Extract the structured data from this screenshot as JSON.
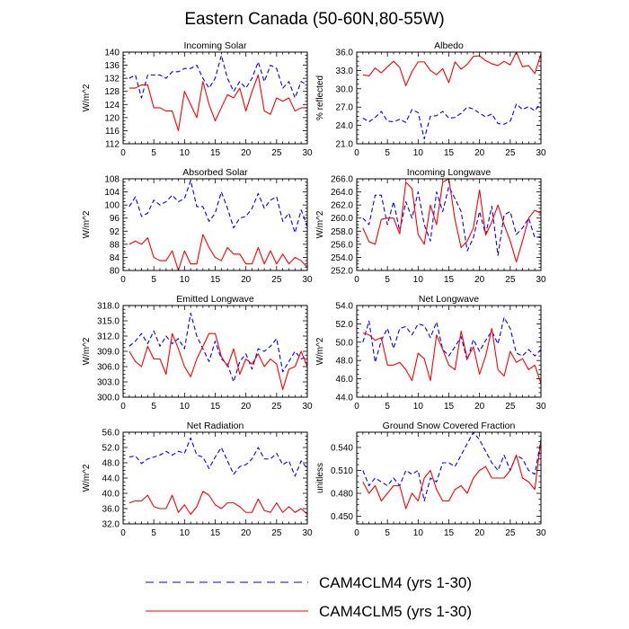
{
  "figure": {
    "title": "Eastern Canada (50-60N,80-55W)"
  },
  "legend": [
    {
      "label": "CAM4CLM4 (yrs 1-30)",
      "color": "#0000ff",
      "dash": true
    },
    {
      "label": "CAM4CLM5 (yrs 1-30)",
      "color": "#ff0000",
      "dash": false
    }
  ],
  "chart_data": [
    {
      "type": "line",
      "title": "Incoming Solar",
      "ylabel": "W/m^2",
      "xlim": [
        0,
        30
      ],
      "xticks": [
        0,
        5,
        10,
        15,
        20,
        25,
        30
      ],
      "ylim": [
        112,
        140
      ],
      "yticks": [
        112,
        116,
        120,
        124,
        128,
        132,
        136,
        140
      ],
      "ydec": 0,
      "x": [
        1,
        2,
        3,
        4,
        5,
        6,
        7,
        8,
        9,
        10,
        11,
        12,
        13,
        14,
        15,
        16,
        17,
        18,
        19,
        20,
        21,
        22,
        23,
        24,
        25,
        26,
        27,
        28,
        29,
        30
      ],
      "series": [
        {
          "name": "CAM4CLM4 (yrs 1-30)",
          "values": [
            132,
            133,
            126,
            133,
            133,
            133,
            132,
            134,
            134,
            135,
            135,
            136,
            132,
            129,
            132,
            139,
            132,
            128,
            131,
            129,
            132,
            137,
            131,
            136,
            135,
            129,
            131,
            126,
            131,
            130
          ]
        },
        {
          "name": "CAM4CLM5 (yrs 1-30)",
          "values": [
            129,
            129,
            130,
            130,
            123,
            123,
            122,
            122,
            116,
            128,
            124,
            120,
            131,
            124,
            119,
            123,
            127,
            126,
            129,
            122,
            128,
            133,
            122,
            121,
            126,
            125,
            126,
            122,
            123,
            123
          ]
        }
      ]
    },
    {
      "type": "line",
      "title": "Albedo",
      "ylabel": "% reflected",
      "xlim": [
        0,
        30
      ],
      "xticks": [
        0,
        5,
        10,
        15,
        20,
        25,
        30
      ],
      "ylim": [
        21,
        36
      ],
      "yticks": [
        21,
        24,
        27,
        30,
        33,
        36
      ],
      "ydec": 1,
      "x": [
        1,
        2,
        3,
        4,
        5,
        6,
        7,
        8,
        9,
        10,
        11,
        12,
        13,
        14,
        15,
        16,
        17,
        18,
        19,
        20,
        21,
        22,
        23,
        24,
        25,
        26,
        27,
        28,
        29,
        30
      ],
      "series": [
        {
          "name": "CAM4CLM4 (yrs 1-30)",
          "values": [
            25.2,
            24.6,
            25.3,
            26.3,
            24.7,
            24.6,
            25.0,
            24.5,
            26.6,
            26.1,
            21.8,
            25.5,
            25.6,
            26.3,
            25.2,
            25.3,
            26.0,
            27.0,
            26.7,
            26.0,
            25.4,
            25.9,
            24.3,
            24.2,
            24.7,
            27.5,
            26.6,
            27.1,
            26.4,
            27.7
          ]
        },
        {
          "name": "CAM4CLM5 (yrs 1-30)",
          "values": [
            32.3,
            32.1,
            33.4,
            32.6,
            33.6,
            34.5,
            33.5,
            30.5,
            32.8,
            34.4,
            34.4,
            33.0,
            32.3,
            33.3,
            31.0,
            34.4,
            33.2,
            34.0,
            35.3,
            35.4,
            34.6,
            34.1,
            33.8,
            34.5,
            33.9,
            36.0,
            33.6,
            33.8,
            32.5,
            35.7
          ]
        }
      ]
    },
    {
      "type": "line",
      "title": "Absorbed Solar",
      "ylabel": "W/m^2",
      "xlim": [
        0,
        30
      ],
      "xticks": [
        0,
        5,
        10,
        15,
        20,
        25,
        30
      ],
      "ylim": [
        80,
        108
      ],
      "yticks": [
        80,
        84,
        88,
        92,
        96,
        100,
        104,
        108
      ],
      "ydec": 0,
      "x": [
        1,
        2,
        3,
        4,
        5,
        6,
        7,
        8,
        9,
        10,
        11,
        12,
        13,
        14,
        15,
        16,
        17,
        18,
        19,
        20,
        21,
        22,
        23,
        24,
        25,
        26,
        27,
        28,
        29,
        30
      ],
      "series": [
        {
          "name": "CAM4CLM4 (yrs 1-30)",
          "values": [
            99.5,
            102.5,
            96.5,
            97.5,
            101.5,
            100,
            101,
            103,
            101,
            102,
            107.5,
            99.5,
            99.5,
            95,
            97.5,
            104,
            99,
            93,
            96,
            96.5,
            99,
            103.5,
            99,
            101.5,
            102.5,
            95,
            97.5,
            91.5,
            98.5,
            93.5
          ]
        },
        {
          "name": "CAM4CLM5 (yrs 1-30)",
          "values": [
            88,
            89,
            88,
            90,
            84,
            83,
            83,
            86,
            80,
            86,
            82,
            82,
            91,
            87,
            84,
            83,
            87,
            85,
            85,
            82,
            82,
            87,
            82,
            86,
            82,
            85,
            82,
            84,
            83,
            81
          ]
        }
      ]
    },
    {
      "type": "line",
      "title": "Incoming Longwave",
      "ylabel": "W/m^2",
      "xlim": [
        0,
        30
      ],
      "xticks": [
        0,
        5,
        10,
        15,
        20,
        25,
        30
      ],
      "ylim": [
        252,
        266
      ],
      "yticks": [
        252,
        254,
        256,
        258,
        260,
        262,
        264,
        266
      ],
      "ydec": 1,
      "x": [
        1,
        2,
        3,
        4,
        5,
        6,
        7,
        8,
        9,
        10,
        11,
        12,
        13,
        14,
        15,
        16,
        17,
        18,
        19,
        20,
        21,
        22,
        23,
        24,
        25,
        26,
        27,
        28,
        29,
        30
      ],
      "series": [
        {
          "name": "CAM4CLM4 (yrs 1-30)",
          "values": [
            260,
            259,
            263.5,
            263.5,
            259,
            262.5,
            258,
            262.5,
            260,
            264,
            259,
            256.5,
            264,
            261,
            264.8,
            263,
            261,
            255,
            257,
            261,
            257.5,
            261.8,
            254.3,
            260.5,
            261,
            257.5,
            258.5,
            260,
            257,
            257.2
          ]
        },
        {
          "name": "CAM4CLM5 (yrs 1-30)",
          "values": [
            258.5,
            256.4,
            256,
            259.8,
            260,
            260,
            257.6,
            265.5,
            264.5,
            257.5,
            256,
            262,
            259,
            265.5,
            266,
            259.8,
            255.5,
            256.5,
            258.5,
            264.3,
            257.4,
            259.4,
            262,
            259,
            256.5,
            253.3,
            256.5,
            260,
            261.2,
            260.7
          ]
        }
      ]
    },
    {
      "type": "line",
      "title": "Emitted Longwave",
      "ylabel": "W/m^2",
      "xlim": [
        0,
        30
      ],
      "xticks": [
        0,
        5,
        10,
        15,
        20,
        25,
        30
      ],
      "ylim": [
        300,
        318
      ],
      "yticks": [
        300,
        303,
        306,
        309,
        312,
        315,
        318
      ],
      "ydec": 1,
      "x": [
        1,
        2,
        3,
        4,
        5,
        6,
        7,
        8,
        9,
        10,
        11,
        12,
        13,
        14,
        15,
        16,
        17,
        18,
        19,
        20,
        21,
        22,
        23,
        24,
        25,
        26,
        27,
        28,
        29,
        30
      ],
      "series": [
        {
          "name": "CAM4CLM4 (yrs 1-30)",
          "values": [
            310,
            311,
            312.5,
            310.5,
            313,
            310,
            312,
            310.5,
            311.5,
            309.5,
            316.5,
            312,
            309.5,
            307,
            311,
            307.5,
            306.5,
            303,
            307,
            308.5,
            305.5,
            309.5,
            309,
            310,
            311.5,
            305,
            307,
            309,
            307.5,
            308
          ]
        },
        {
          "name": "CAM4CLM5 (yrs 1-30)",
          "values": [
            309,
            307,
            306,
            310,
            307.5,
            307.5,
            304.5,
            312.5,
            309.5,
            306,
            304,
            307.5,
            310,
            312.5,
            312.5,
            308,
            306,
            309.5,
            304.5,
            307.5,
            306.5,
            308.5,
            306,
            307.5,
            306.5,
            301.5,
            305.5,
            306,
            309,
            306
          ]
        }
      ]
    },
    {
      "type": "line",
      "title": "Net Longwave",
      "ylabel": "W/m^2",
      "xlim": [
        0,
        30
      ],
      "xticks": [
        0,
        5,
        10,
        15,
        20,
        25,
        30
      ],
      "ylim": [
        44,
        54
      ],
      "yticks": [
        44,
        46,
        48,
        50,
        52,
        54
      ],
      "ydec": 1,
      "x": [
        1,
        2,
        3,
        4,
        5,
        6,
        7,
        8,
        9,
        10,
        11,
        12,
        13,
        14,
        15,
        16,
        17,
        18,
        19,
        20,
        21,
        22,
        23,
        24,
        25,
        26,
        27,
        28,
        29,
        30
      ],
      "series": [
        {
          "name": "CAM4CLM4 (yrs 1-30)",
          "values": [
            50,
            52.3,
            47.8,
            50.2,
            51.5,
            49.3,
            51.5,
            51.7,
            50.8,
            52,
            51.8,
            50.5,
            52.2,
            49.2,
            48.5,
            49.5,
            50.6,
            48,
            50.3,
            49,
            50.2,
            51.2,
            49.8,
            52.7,
            51.5,
            48.8,
            48.5,
            49.2,
            48.5,
            49.2
          ]
        },
        {
          "name": "CAM4CLM5 (yrs 1-30)",
          "values": [
            51,
            50.8,
            50.2,
            50.5,
            47.5,
            47.5,
            47.8,
            47,
            45.8,
            48.8,
            48.2,
            45.8,
            50.8,
            49.2,
            47.5,
            47,
            51.2,
            48.2,
            49.5,
            46.5,
            48.5,
            51.5,
            47,
            46.3,
            49,
            47.8,
            48.2,
            47,
            47.5,
            45.5
          ]
        }
      ]
    },
    {
      "type": "line",
      "title": "Net Radiation",
      "ylabel": "W/m^2",
      "xlim": [
        0,
        30
      ],
      "xticks": [
        0,
        5,
        10,
        15,
        20,
        25,
        30
      ],
      "ylim": [
        32,
        56
      ],
      "yticks": [
        32,
        36,
        40,
        44,
        48,
        52,
        56
      ],
      "ydec": 1,
      "x": [
        1,
        2,
        3,
        4,
        5,
        6,
        7,
        8,
        9,
        10,
        11,
        12,
        13,
        14,
        15,
        16,
        17,
        18,
        19,
        20,
        21,
        22,
        23,
        24,
        25,
        26,
        27,
        28,
        29,
        30
      ],
      "series": [
        {
          "name": "CAM4CLM4 (yrs 1-30)",
          "values": [
            49.5,
            49.8,
            47.8,
            49,
            49.5,
            50,
            51,
            50,
            51,
            50.5,
            54.5,
            50,
            49.5,
            46.5,
            49.5,
            52,
            48.5,
            45,
            47,
            47.5,
            49,
            52,
            49,
            49,
            50.5,
            47.5,
            48.5,
            44.5,
            48.5,
            46.5
          ]
        },
        {
          "name": "CAM4CLM5 (yrs 1-30)",
          "values": [
            37.5,
            38,
            38,
            39.5,
            36.5,
            36,
            36,
            39.5,
            35,
            37,
            34.5,
            36.5,
            40.5,
            39.5,
            37,
            36,
            37.5,
            37.5,
            36.5,
            35,
            35,
            38.5,
            35.5,
            35,
            37.5,
            35,
            36.5,
            35,
            36,
            34.5
          ]
        }
      ]
    },
    {
      "type": "line",
      "title": "Ground Snow Covered Fraction",
      "ylabel": "unitless",
      "xlim": [
        0,
        30
      ],
      "xticks": [
        0,
        5,
        10,
        15,
        20,
        25,
        30
      ],
      "ylim": [
        0.44,
        0.56
      ],
      "yticks": [
        0.45,
        0.48,
        0.51,
        0.54
      ],
      "ydec": 3,
      "x": [
        1,
        2,
        3,
        4,
        5,
        6,
        7,
        8,
        9,
        10,
        11,
        12,
        13,
        14,
        15,
        16,
        17,
        18,
        19,
        20,
        21,
        22,
        23,
        24,
        25,
        26,
        27,
        28,
        29,
        30
      ],
      "series": [
        {
          "name": "CAM4CLM4 (yrs 1-30)",
          "values": [
            0.51,
            0.49,
            0.5,
            0.495,
            0.49,
            0.5,
            0.49,
            0.51,
            0.505,
            0.51,
            0.47,
            0.5,
            0.495,
            0.52,
            0.52,
            0.515,
            0.53,
            0.545,
            0.56,
            0.55,
            0.535,
            0.52,
            0.51,
            0.53,
            0.51,
            0.53,
            0.525,
            0.51,
            0.505,
            0.55
          ]
        },
        {
          "name": "CAM4CLM5 (yrs 1-30)",
          "values": [
            0.495,
            0.48,
            0.49,
            0.47,
            0.48,
            0.49,
            0.49,
            0.46,
            0.48,
            0.47,
            0.5,
            0.51,
            0.485,
            0.47,
            0.47,
            0.485,
            0.49,
            0.48,
            0.5,
            0.51,
            0.515,
            0.5,
            0.5,
            0.5,
            0.51,
            0.53,
            0.5,
            0.495,
            0.485,
            0.55
          ]
        }
      ]
    }
  ]
}
